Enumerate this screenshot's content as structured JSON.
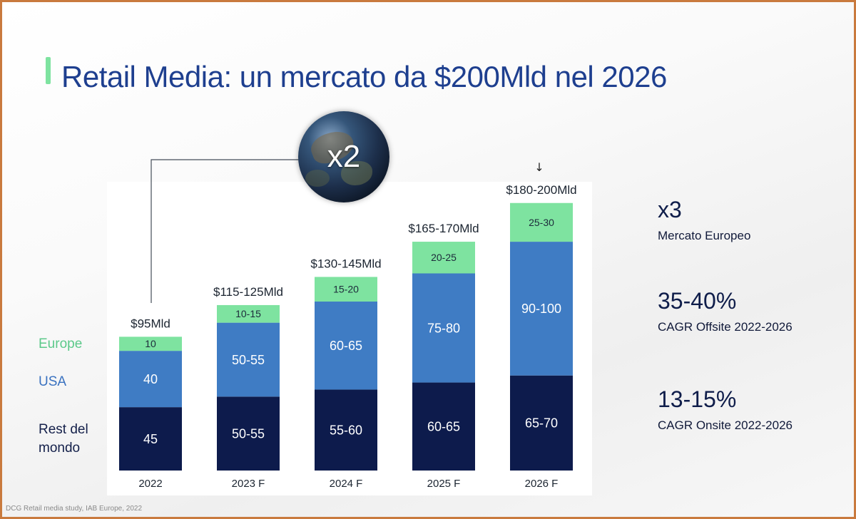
{
  "title": "Retail Media: un mercato da $200Mld nel 2026",
  "globe_label": "x2",
  "arrow_glyph": "↓",
  "legend": {
    "europe": "Europe",
    "usa": "USA",
    "rest": "Rest del mondo"
  },
  "stats": [
    {
      "value": "x3",
      "label": "Mercato Europeo"
    },
    {
      "value": "35-40%",
      "label": "CAGR Offsite 2022-2026"
    },
    {
      "value": "13-15%",
      "label": "CAGR Onsite 2022-2026"
    }
  ],
  "source": "DCG Retail media study, IAB Europe, 2022",
  "colors": {
    "title": "#1e3f8f",
    "europe": "#7ee3a0",
    "usa": "#3f7cc4",
    "rest": "#0d1b4c",
    "frame": "#c97a3e"
  },
  "chart_data": {
    "type": "bar",
    "stacked": true,
    "categories": [
      "2022",
      "2023 F",
      "2024 F",
      "2025 F",
      "2026 F"
    ],
    "totals": [
      "$95Mld",
      "$115-125Mld",
      "$130-145Mld",
      "$165-170Mld",
      "$180-200Mld"
    ],
    "series": [
      {
        "name": "Rest del mondo",
        "values": [
          45,
          52.5,
          57.5,
          62.5,
          67.5
        ],
        "labels": [
          "45",
          "50-55",
          "55-60",
          "60-65",
          "65-70"
        ]
      },
      {
        "name": "USA",
        "values": [
          40,
          52.5,
          62.5,
          77.5,
          95
        ],
        "labels": [
          "40",
          "50-55",
          "60-65",
          "75-80",
          "90-100"
        ]
      },
      {
        "name": "Europe",
        "values": [
          10,
          12.5,
          17.5,
          22.5,
          27.5
        ],
        "labels": [
          "10",
          "10-15",
          "15-20",
          "20-25",
          "25-30"
        ]
      }
    ],
    "ylim": [
      0,
      200
    ]
  }
}
